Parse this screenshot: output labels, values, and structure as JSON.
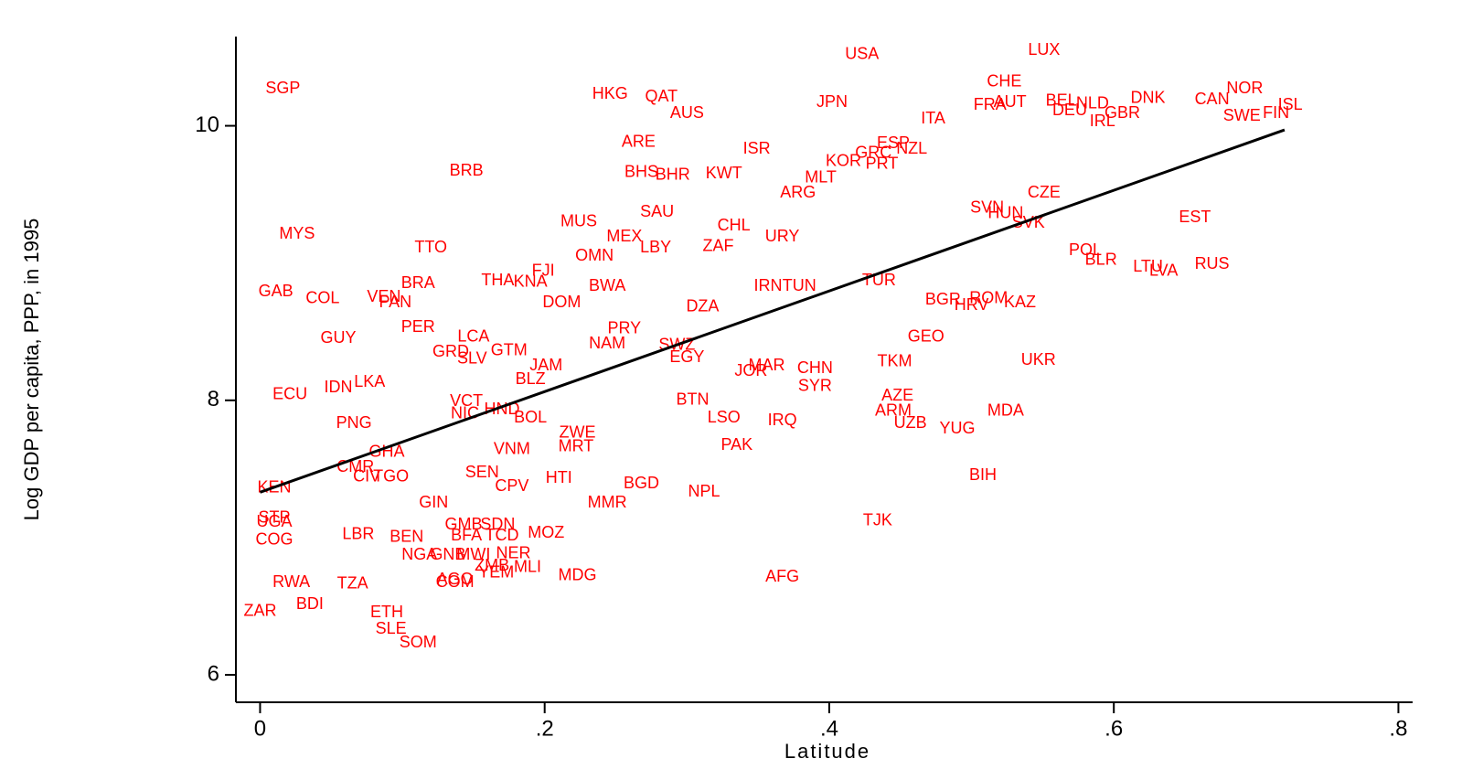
{
  "chart_data": {
    "type": "scatter",
    "x_label": "Latitude",
    "y_label": "Log GDP per capita, PPP, in 1995",
    "xlim": [
      -0.017,
      0.81
    ],
    "ylim": [
      5.8,
      10.65
    ],
    "xticks": [
      0,
      {
        "value": 0.2,
        "label": ".2"
      },
      {
        "value": 0.4,
        "label": ".4"
      },
      {
        "value": 0.6,
        "label": ".6"
      },
      {
        "value": 0.8,
        "label": ".8"
      }
    ],
    "yticks": [
      6,
      8,
      10
    ],
    "series": [
      {
        "color": "#ff0000",
        "labels": [
          "SGP",
          "USA",
          "LUX",
          "CHE",
          "HKG",
          "QAT",
          "AUS",
          "JPN",
          "ITA",
          "FRA",
          "AUT",
          "BEL",
          "NLD",
          "DEU",
          "GBR",
          "IRL",
          "DNK",
          "CAN",
          "NOR",
          "SWE",
          "FIN",
          "ISL",
          "ARE",
          "ISR",
          "ESP",
          "NZL",
          "GRC",
          "KOR",
          "PRT",
          "BRB",
          "BHS",
          "BHR",
          "KWT",
          "MLT",
          "ARG",
          "CZE",
          "SVN",
          "HUN",
          "SVK",
          "SAU",
          "MUS",
          "CHL",
          "MEX",
          "LBY",
          "ZAF",
          "URY",
          "EST",
          "MYS",
          "TTO",
          "OMN",
          "POL",
          "BLR",
          "LTU",
          "LVA",
          "RUS",
          "FJI",
          "THA",
          "KNA",
          "BRA",
          "BWA",
          "TUR",
          "IRN",
          "TUN",
          "GAB",
          "COL",
          "VEN",
          "PAN",
          "DOM",
          "DZA",
          "BGR",
          "ROM",
          "HRV",
          "KAZ",
          "PER",
          "PRY",
          "GEO",
          "GUY",
          "LCA",
          "NAM",
          "SWZ",
          "GRD",
          "GTM",
          "SLV",
          "JAM",
          "EGY",
          "TKM",
          "UKR",
          "MAR",
          "JOR",
          "CHN",
          "BLZ",
          "SYR",
          "ECU",
          "IDN",
          "LKA",
          "AZE",
          "VCT",
          "NIC",
          "HND",
          "BTN",
          "ARM",
          "MDA",
          "BOL",
          "LSO",
          "IRQ",
          "UZB",
          "YUG",
          "PNG",
          "ZWE",
          "MRT",
          "PAK",
          "VNM",
          "GHA",
          "CMR",
          "CIV",
          "TGO",
          "SEN",
          "HTI",
          "BGD",
          "CPV",
          "NPL",
          "BIH",
          "KEN",
          "GIN",
          "MMR",
          "STP",
          "UGA",
          "TJK",
          "GMB",
          "SDN",
          "MOZ",
          "LBR",
          "BEN",
          "BFA",
          "TCD",
          "COG",
          "NGA",
          "GNB",
          "MWI",
          "NER",
          "ZMB",
          "MLI",
          "YEM",
          "MDG",
          "AFG",
          "AGO",
          "COM",
          "RWA",
          "TZA",
          "BDI",
          "ZAR",
          "ETH",
          "SLE",
          "SOM"
        ],
        "x": [
          0.016,
          0.423,
          0.551,
          0.523,
          0.246,
          0.282,
          0.3,
          0.402,
          0.473,
          0.513,
          0.527,
          0.563,
          0.585,
          0.569,
          0.606,
          0.592,
          0.624,
          0.669,
          0.692,
          0.69,
          0.714,
          0.724,
          0.266,
          0.349,
          0.445,
          0.458,
          0.431,
          0.41,
          0.437,
          0.145,
          0.268,
          0.29,
          0.326,
          0.394,
          0.378,
          0.551,
          0.511,
          0.524,
          0.54,
          0.279,
          0.224,
          0.333,
          0.256,
          0.278,
          0.322,
          0.367,
          0.657,
          0.026,
          0.12,
          0.235,
          0.58,
          0.591,
          0.624,
          0.635,
          0.669,
          0.199,
          0.167,
          0.19,
          0.111,
          0.244,
          0.435,
          0.357,
          0.379,
          0.011,
          0.044,
          0.087,
          0.095,
          0.212,
          0.311,
          0.48,
          0.512,
          0.5,
          0.534,
          0.111,
          0.256,
          0.468,
          0.055,
          0.15,
          0.244,
          0.293,
          0.134,
          0.175,
          0.149,
          0.201,
          0.3,
          0.446,
          0.547,
          0.356,
          0.345,
          0.39,
          0.19,
          0.39,
          0.021,
          0.055,
          0.077,
          0.448,
          0.145,
          0.144,
          0.17,
          0.304,
          0.445,
          0.524,
          0.19,
          0.326,
          0.367,
          0.457,
          0.49,
          0.066,
          0.223,
          0.222,
          0.335,
          0.177,
          0.089,
          0.067,
          0.075,
          0.092,
          0.156,
          0.21,
          0.268,
          0.177,
          0.312,
          0.508,
          0.01,
          0.122,
          0.244,
          0.01,
          0.01,
          0.434,
          0.143,
          0.167,
          0.201,
          0.069,
          0.103,
          0.145,
          0.17,
          0.01,
          0.112,
          0.132,
          0.15,
          0.178,
          0.163,
          0.188,
          0.166,
          0.223,
          0.367,
          0.137,
          0.137,
          0.022,
          0.065,
          0.035,
          0.0,
          0.089,
          0.092,
          0.111
        ],
        "values": [
          10.27,
          10.52,
          10.55,
          10.32,
          10.23,
          10.21,
          10.09,
          10.17,
          10.05,
          10.15,
          10.17,
          10.18,
          10.16,
          10.11,
          10.09,
          10.03,
          10.2,
          10.19,
          10.27,
          10.07,
          10.09,
          10.15,
          9.88,
          9.83,
          9.87,
          9.83,
          9.8,
          9.74,
          9.72,
          9.67,
          9.66,
          9.64,
          9.65,
          9.62,
          9.51,
          9.51,
          9.4,
          9.36,
          9.29,
          9.37,
          9.3,
          9.27,
          9.19,
          9.11,
          9.12,
          9.19,
          9.33,
          9.21,
          9.11,
          9.05,
          9.09,
          9.02,
          8.97,
          8.94,
          8.99,
          8.94,
          8.87,
          8.86,
          8.85,
          8.83,
          8.87,
          8.83,
          8.83,
          8.79,
          8.74,
          8.75,
          8.71,
          8.71,
          8.68,
          8.73,
          8.74,
          8.69,
          8.71,
          8.53,
          8.52,
          8.46,
          8.45,
          8.46,
          8.41,
          8.4,
          8.35,
          8.36,
          8.3,
          8.25,
          8.31,
          8.28,
          8.29,
          8.25,
          8.21,
          8.23,
          8.15,
          8.1,
          8.04,
          8.09,
          8.13,
          8.03,
          7.99,
          7.9,
          7.93,
          8.0,
          7.92,
          7.92,
          7.87,
          7.87,
          7.85,
          7.83,
          7.79,
          7.83,
          7.76,
          7.66,
          7.67,
          7.64,
          7.62,
          7.51,
          7.44,
          7.44,
          7.47,
          7.43,
          7.39,
          7.37,
          7.33,
          7.45,
          7.36,
          7.25,
          7.25,
          7.14,
          7.11,
          7.12,
          7.09,
          7.09,
          7.03,
          7.02,
          7.0,
          7.01,
          7.01,
          6.98,
          6.87,
          6.87,
          6.87,
          6.88,
          6.79,
          6.78,
          6.74,
          6.72,
          6.71,
          6.69,
          6.67,
          6.67,
          6.66,
          6.51,
          6.46,
          6.45,
          6.33,
          6.23
        ]
      }
    ],
    "fit_line": {
      "color": "#000000",
      "x": [
        0,
        0.72
      ],
      "values": [
        7.33,
        9.97
      ]
    }
  }
}
